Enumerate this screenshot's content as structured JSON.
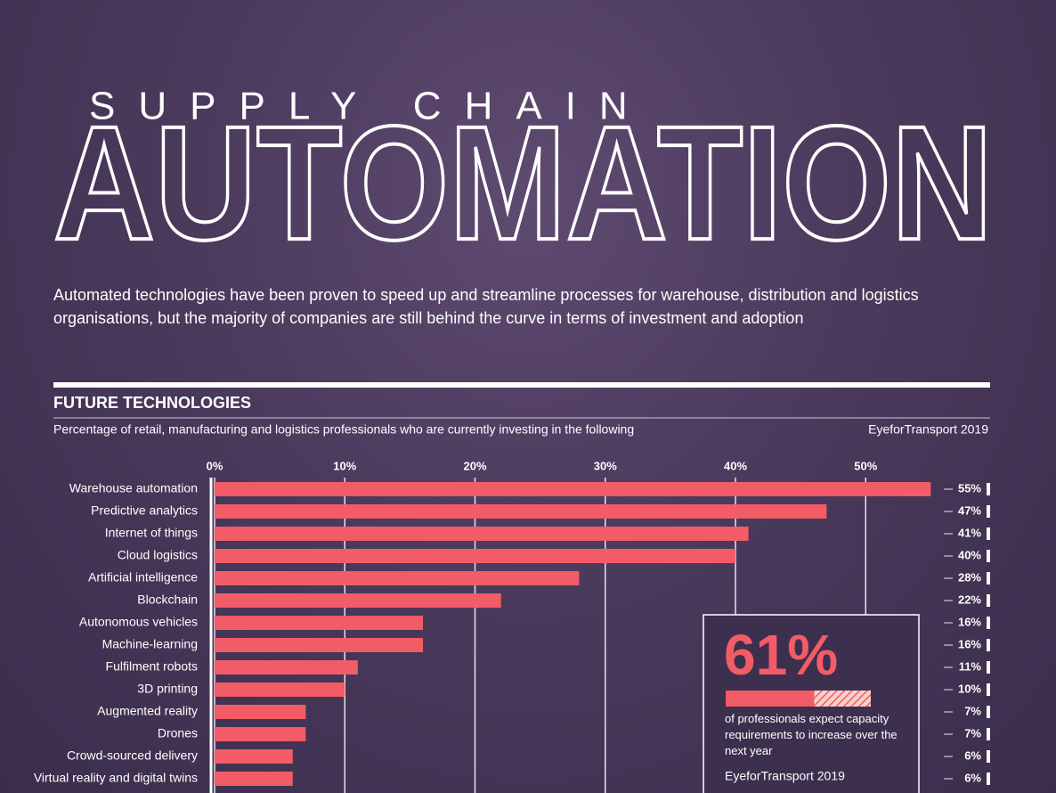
{
  "header": {
    "kicker": "SUPPLY CHAIN",
    "title": "AUTOMATION",
    "description": "Automated technologies have been proven to speed up and streamline processes for warehouse, distribution and logistics organisations, but the majority of companies are still behind the curve in terms of investment and adoption"
  },
  "chart_data": {
    "type": "hbar",
    "title": "FUTURE TECHNOLOGIES",
    "subtitle": "Percentage of retail, manufacturing and logistics professionals who are currently investing in the following",
    "source": "EyeforTransport 2019",
    "categories": [
      "Warehouse automation",
      "Predictive analytics",
      "Internet of things",
      "Cloud logistics",
      "Artificial intelligence",
      "Blockchain",
      "Autonomous vehicles",
      "Machine-learning",
      "Fulfilment robots",
      "3D printing",
      "Augmented reality",
      "Drones",
      "Crowd-sourced delivery",
      "Virtual reality and digital twins"
    ],
    "values": [
      55,
      47,
      41,
      40,
      28,
      22,
      16,
      16,
      11,
      10,
      7,
      7,
      6,
      6
    ],
    "value_labels": [
      "55%",
      "47%",
      "41%",
      "40%",
      "28%",
      "22%",
      "16%",
      "16%",
      "11%",
      "10%",
      "7%",
      "7%",
      "6%",
      "6%"
    ],
    "color": "#f25c66",
    "xlim": [
      0,
      56
    ],
    "xticks": [
      {
        "value": 0,
        "label": "0%"
      },
      {
        "value": 10,
        "label": "10%"
      },
      {
        "value": 20,
        "label": "20%"
      },
      {
        "value": 30,
        "label": "30%"
      },
      {
        "value": 40,
        "label": "40%"
      },
      {
        "value": 50,
        "label": "50%"
      }
    ],
    "grid": true
  },
  "callout": {
    "value": 61,
    "label": "61%",
    "xlim": [
      0,
      100
    ],
    "color": "#f25c66",
    "text": "of professionals expect capacity requirements to increase over the next year",
    "source": "EyeforTransport 2019"
  }
}
